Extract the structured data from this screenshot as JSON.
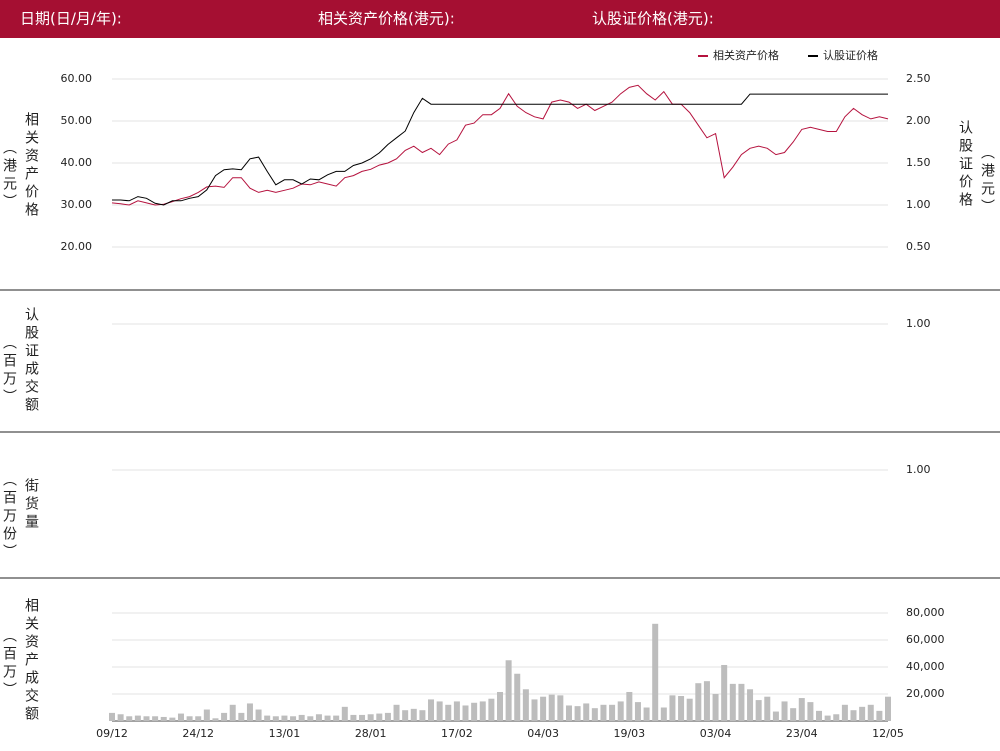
{
  "header": {
    "labels": [
      "日期(日/月/年):",
      "相关资产价格(港元):",
      "认股证价格(港元):"
    ]
  },
  "chart_data": [
    {
      "type": "line",
      "legend": "upper right",
      "grid": true,
      "ylabel": {
        "main": "相关资产价格",
        "unit": "（港元）",
        "color": "#b5123e"
      },
      "y2label": {
        "main": "认股证价格",
        "unit": "（港元）",
        "color": "#222222"
      },
      "ylim": [
        20,
        60
      ],
      "yticks": [
        {
          "value": 60,
          "label": "60.00"
        },
        {
          "value": 50,
          "label": "50.00"
        },
        {
          "value": 40,
          "label": "40.00"
        },
        {
          "value": 30,
          "label": "30.00"
        },
        {
          "value": 20,
          "label": "20.00"
        }
      ],
      "y2lim": [
        0.5,
        2.5
      ],
      "y2ticks": [
        {
          "value": 2.5,
          "label": "2.50"
        },
        {
          "value": 2,
          "label": "2.00"
        },
        {
          "value": 1.5,
          "label": "1.50"
        },
        {
          "value": 1,
          "label": "1.00"
        },
        {
          "value": 0.5,
          "label": "0.50"
        }
      ],
      "series": [
        {
          "name": "相关资产价格",
          "color": "#b5123e",
          "values": [
            30.5,
            30.3,
            30.0,
            31.0,
            30.5,
            30.0,
            30.2,
            30.8,
            31.5,
            32.0,
            33.0,
            34.3,
            34.5,
            34.2,
            36.5,
            36.5,
            34.0,
            33.0,
            33.5,
            33.0,
            33.5,
            34.0,
            35.0,
            34.8,
            35.5,
            35.0,
            34.5,
            36.5,
            37.0,
            38.0,
            38.5,
            39.5,
            40.0,
            41.0,
            43.0,
            44.0,
            42.5,
            43.5,
            42.0,
            44.5,
            45.5,
            49.0,
            49.5,
            51.5,
            51.5,
            53.0,
            56.5,
            53.5,
            52.0,
            51.0,
            50.5,
            54.5,
            55.0,
            54.5,
            53.0,
            54.0,
            52.5,
            53.5,
            54.5,
            56.5,
            58.0,
            58.5,
            56.5,
            55.0,
            57.0,
            54.0,
            54.0,
            52.0,
            49.0,
            46.0,
            47.0,
            36.5,
            39.0,
            42.0,
            43.5,
            44.0,
            43.5,
            42.0,
            42.5,
            45.0,
            48.0,
            48.5,
            48.0,
            47.5,
            47.5,
            51.0,
            53.0,
            51.5,
            50.5,
            51.0,
            50.5
          ]
        },
        {
          "name": "认股证价格",
          "color": "#000000",
          "axis": "y2",
          "values": [
            1.06,
            1.06,
            1.05,
            1.1,
            1.08,
            1.02,
            1.0,
            1.05,
            1.05,
            1.08,
            1.1,
            1.18,
            1.35,
            1.42,
            1.43,
            1.42,
            1.55,
            1.57,
            1.4,
            1.24,
            1.3,
            1.3,
            1.25,
            1.31,
            1.3,
            1.36,
            1.4,
            1.4,
            1.47,
            1.5,
            1.55,
            1.62,
            1.72,
            1.8,
            1.88,
            2.1,
            2.27,
            2.2,
            2.2,
            2.2,
            2.2,
            2.2,
            2.2,
            2.2,
            2.2,
            2.2,
            2.2,
            2.2,
            2.2,
            2.2,
            2.2,
            2.2,
            2.2,
            2.2,
            2.2,
            2.2,
            2.2,
            2.2,
            2.2,
            2.2,
            2.2,
            2.2,
            2.2,
            2.2,
            2.2,
            2.2,
            2.2,
            2.2,
            2.2,
            2.2,
            2.2,
            2.2,
            2.2,
            2.2,
            2.32,
            2.32,
            2.32,
            2.32,
            2.32,
            2.32,
            2.32,
            2.32,
            2.32,
            2.32,
            2.32,
            2.32,
            2.32,
            2.32,
            2.32,
            2.32,
            2.32
          ]
        }
      ]
    },
    {
      "type": "bar",
      "grid": true,
      "ylabel": {
        "main": "认股证成交额",
        "unit": "（百万）",
        "color": "#222222"
      },
      "ylim": [
        0,
        1
      ],
      "yticks": [
        {
          "value": 1,
          "label": "1.00"
        }
      ],
      "values": []
    },
    {
      "type": "bar",
      "grid": true,
      "ylabel": {
        "main": "街货量",
        "unit": "（百万份）",
        "color": "#222222"
      },
      "ylim": [
        0,
        1
      ],
      "yticks": [
        {
          "value": 1,
          "label": "1.00"
        }
      ],
      "values": []
    },
    {
      "type": "bar",
      "grid": true,
      "color": "#bdbdbd",
      "ylabel": {
        "main": "相关资产成交额",
        "unit": "（百万）",
        "color": "#222222"
      },
      "ylim": [
        0,
        80000
      ],
      "yticks": [
        {
          "value": 80000,
          "label": "80,000"
        },
        {
          "value": 60000,
          "label": "60,000"
        },
        {
          "value": 40000,
          "label": "40,000"
        },
        {
          "value": 20000,
          "label": "20,000"
        }
      ],
      "categories": [
        "09/12",
        null,
        null,
        null,
        null,
        null,
        null,
        null,
        null,
        null,
        "24/12",
        null,
        null,
        null,
        null,
        null,
        null,
        null,
        null,
        null,
        "13/01",
        null,
        null,
        null,
        null,
        null,
        null,
        null,
        null,
        null,
        "28/01",
        null,
        null,
        null,
        null,
        null,
        null,
        null,
        null,
        null,
        "17/02",
        null,
        null,
        null,
        null,
        null,
        null,
        null,
        null,
        null,
        "04/03",
        null,
        null,
        null,
        null,
        null,
        null,
        null,
        null,
        null,
        "19/03",
        null,
        null,
        null,
        null,
        null,
        null,
        null,
        null,
        null,
        "03/04",
        null,
        null,
        null,
        null,
        null,
        null,
        null,
        null,
        null,
        "23/04",
        null,
        null,
        null,
        null,
        null,
        null,
        null,
        null,
        null,
        "12/05"
      ],
      "values": [
        6000,
        5000,
        3500,
        4000,
        3500,
        3500,
        3000,
        2500,
        5500,
        3500,
        3500,
        8500,
        2000,
        6000,
        12000,
        6000,
        13000,
        8500,
        4000,
        3500,
        4000,
        3500,
        4500,
        3500,
        5000,
        4000,
        4000,
        10500,
        4500,
        4500,
        5000,
        5500,
        6000,
        12000,
        8000,
        9000,
        8000,
        16000,
        14500,
        12000,
        14500,
        11500,
        13500,
        14500,
        16500,
        21500,
        45000,
        35000,
        23500,
        16000,
        18000,
        19500,
        19000,
        11500,
        11000,
        13000,
        9500,
        12000,
        12000,
        14500,
        21500,
        14000,
        10000,
        72000,
        10000,
        19000,
        18500,
        16500,
        28000,
        29500,
        20000,
        41500,
        27500,
        27500,
        23500,
        15500,
        18000,
        7000,
        14500,
        9500,
        17000,
        14000,
        7500,
        4000,
        5000,
        12000,
        8000,
        10500,
        12000,
        7500,
        18000
      ]
    }
  ]
}
